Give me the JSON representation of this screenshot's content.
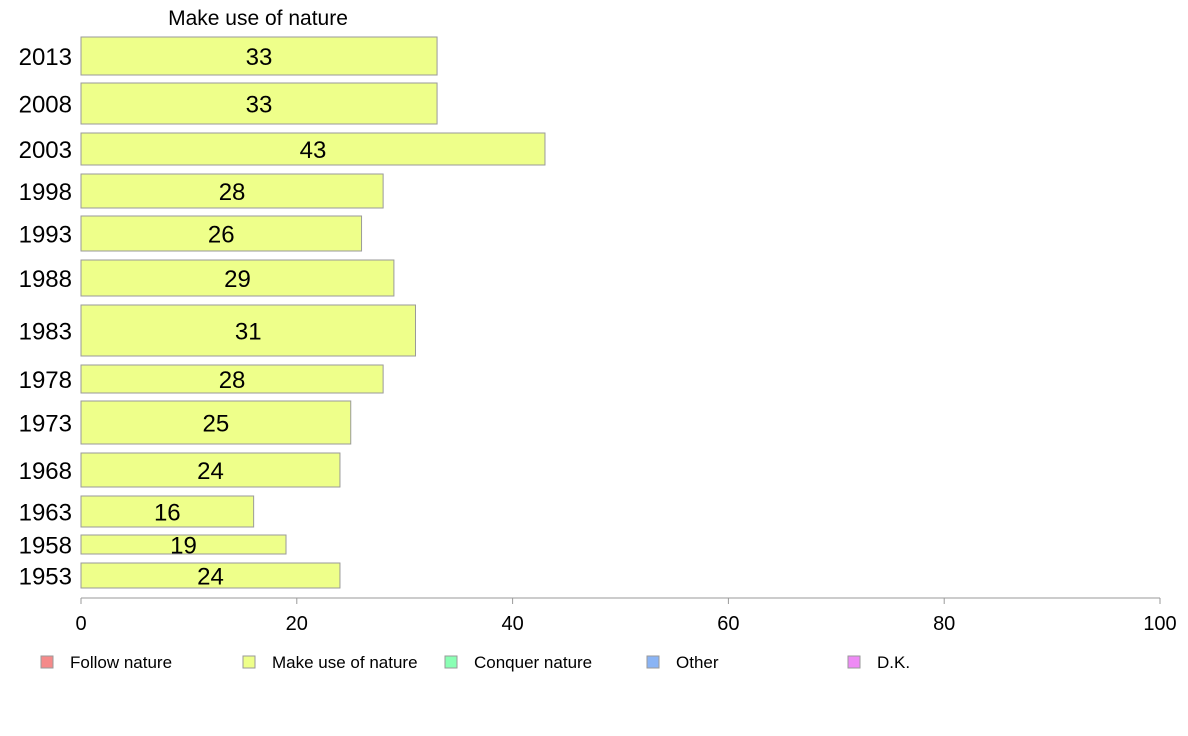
{
  "chart_data": {
    "type": "bar",
    "orientation": "horizontal",
    "title": "Make use of nature",
    "categories": [
      "2013",
      "2008",
      "2003",
      "1998",
      "1993",
      "1988",
      "1983",
      "1978",
      "1973",
      "1968",
      "1963",
      "1958",
      "1953"
    ],
    "values": [
      33,
      33,
      43,
      28,
      26,
      29,
      31,
      28,
      25,
      24,
      16,
      19,
      24
    ],
    "bar_color": "#eeff8a",
    "xlim": [
      0,
      100
    ],
    "xticks": [
      0,
      20,
      40,
      60,
      80,
      100
    ],
    "grid": false,
    "legend_position": "bottom",
    "legend": [
      {
        "name": "Follow nature",
        "color": "#f58a8a"
      },
      {
        "name": "Make use of nature",
        "color": "#eeff8a"
      },
      {
        "name": "Conquer nature",
        "color": "#8affb4"
      },
      {
        "name": "Other",
        "color": "#8ab4f5"
      },
      {
        "name": "D.K.",
        "color": "#ee8af5"
      }
    ]
  }
}
